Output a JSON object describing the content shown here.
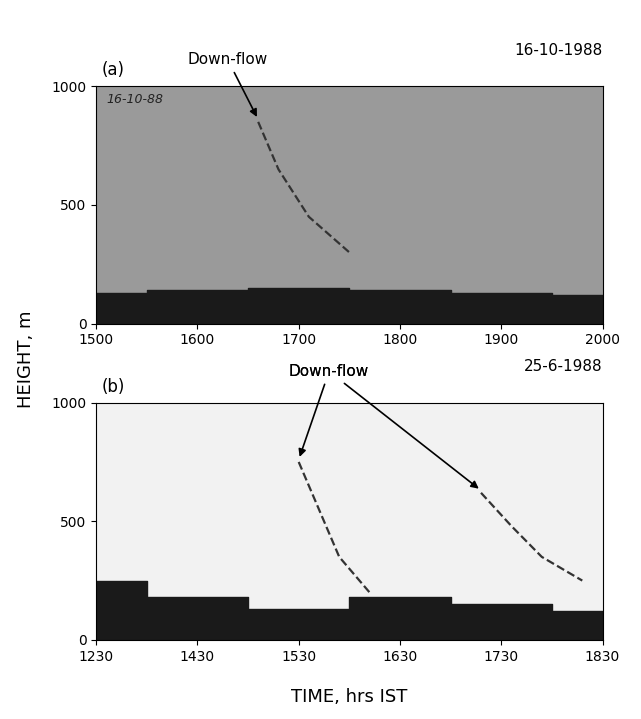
{
  "chart_data": [
    {
      "type": "echogram",
      "title": "16-10-1988",
      "panel": "(a)",
      "categories": [
        "1500",
        "1600",
        "1700",
        "1800",
        "1900",
        "2000"
      ],
      "xlim": [
        0,
        5
      ],
      "ylim": [
        0,
        1000
      ],
      "yticks": [
        0,
        500,
        1000
      ],
      "series": [
        {
          "type": "area",
          "color": "#1a1a1a",
          "x": [
            0,
            1,
            2,
            3,
            4,
            5
          ],
          "values": [
            130,
            140,
            150,
            140,
            130,
            120
          ]
        },
        {
          "type": "line",
          "line_style": "dashed",
          "color": "#333333",
          "x": [
            1.6,
            1.8,
            2.1,
            2.5
          ],
          "values": [
            850,
            650,
            450,
            300
          ]
        }
      ],
      "annotations": [
        {
          "text": "Down-flow",
          "x": 1.3,
          "y": 1080,
          "arrows": [
            [
              1.6,
              860
            ]
          ]
        },
        {
          "text": "16-10-88",
          "x": 0.1,
          "y": 930,
          "arrows": []
        }
      ]
    },
    {
      "type": "echogram",
      "title": "25-6-1988",
      "panel": "(b)",
      "categories": [
        "1230",
        "1430",
        "1530",
        "1630",
        "1730",
        "1830"
      ],
      "xlim": [
        0,
        5
      ],
      "ylim": [
        0,
        1000
      ],
      "yticks": [
        0,
        500,
        1000
      ],
      "series": [
        {
          "type": "area",
          "color": "#1a1a1a",
          "x": [
            0,
            1,
            2,
            3,
            4,
            5
          ],
          "values": [
            250,
            180,
            130,
            180,
            150,
            120
          ]
        },
        {
          "type": "line",
          "line_style": "dashed",
          "color": "#333333",
          "x": [
            2.0,
            2.2,
            2.4,
            2.7
          ],
          "values": [
            750,
            550,
            350,
            200
          ]
        },
        {
          "type": "line",
          "line_style": "dashed",
          "color": "#333333",
          "x": [
            3.8,
            4.1,
            4.4,
            4.8
          ],
          "values": [
            620,
            480,
            350,
            250
          ]
        }
      ],
      "annotations": [
        {
          "text": "Down-flow",
          "x": 2.3,
          "y": 1100,
          "arrows": [
            [
              2.0,
              760
            ],
            [
              3.8,
              630
            ]
          ]
        }
      ]
    }
  ],
  "xlabel": "TIME, hrs IST",
  "ylabel": "HEIGHT, m"
}
